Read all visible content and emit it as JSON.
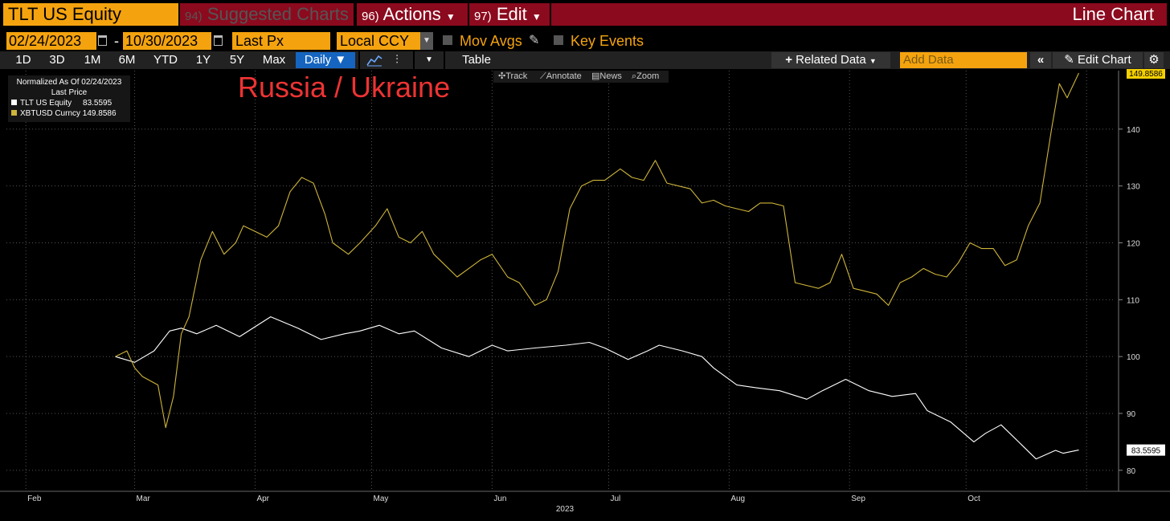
{
  "topbar": {
    "security": "TLT US Equity",
    "suggested_num": "94)",
    "suggested": "Suggested Charts",
    "actions_num": "96)",
    "actions": "Actions",
    "edit_num": "97)",
    "edit": "Edit",
    "chart_type": "Line Chart"
  },
  "datebar": {
    "start_date": "02/24/2023",
    "end_date": "10/30/2023",
    "dash": "-",
    "field": "Last Px",
    "currency": "Local CCY",
    "mov_avgs": "Mov Avgs",
    "key_events": "Key Events"
  },
  "toolbar": {
    "ranges": [
      "1D",
      "3D",
      "1M",
      "6M",
      "YTD",
      "1Y",
      "5Y",
      "Max"
    ],
    "frequency": "Daily",
    "table": "Table",
    "related_data": "Related Data",
    "add_data_placeholder": "Add Data",
    "edit_chart": "Edit Chart"
  },
  "mini_toolbar": {
    "track": "Track",
    "annotate": "Annotate",
    "news": "News",
    "zoom": "Zoom"
  },
  "legend": {
    "title": "Normalized As Of 02/24/2023",
    "subtitle": "Last Price",
    "s1_name": "TLT US Equity",
    "s1_value": "83.5595",
    "s2_name": "XBTUSD Curncy",
    "s2_value": "149.8586"
  },
  "annotation": "Russia / Ukraine",
  "colors": {
    "accent": "#f4a30f",
    "header_red": "#8c0a1e",
    "series_tlt": "#ffffff",
    "series_btc": "#cfb53b",
    "annotation": "#e33333",
    "highlight_blue": "#1565c0"
  },
  "chart_data": {
    "type": "line",
    "title": "",
    "xlabel": "2023",
    "ylabel": "",
    "ylim": [
      78,
      150
    ],
    "x_months": [
      "Feb",
      "Mar",
      "Apr",
      "May",
      "Jun",
      "Jul",
      "Aug",
      "Sep",
      "Oct"
    ],
    "y_ticks": [
      80,
      90,
      100,
      110,
      120,
      130,
      140
    ],
    "grid": true,
    "legend_position": "top-left",
    "series": [
      {
        "name": "TLT US Equity",
        "color": "#ffffff",
        "last_label": "83.5595",
        "values": [
          [
            "2023-02-24",
            100
          ],
          [
            "2023-03-01",
            99
          ],
          [
            "2023-03-06",
            101
          ],
          [
            "2023-03-10",
            104.5
          ],
          [
            "2023-03-13",
            105
          ],
          [
            "2023-03-17",
            104
          ],
          [
            "2023-03-22",
            105.5
          ],
          [
            "2023-03-28",
            103.5
          ],
          [
            "2023-04-05",
            107
          ],
          [
            "2023-04-12",
            105
          ],
          [
            "2023-04-18",
            103
          ],
          [
            "2023-04-24",
            104
          ],
          [
            "2023-04-28",
            104.5
          ],
          [
            "2023-05-03",
            105.5
          ],
          [
            "2023-05-08",
            104
          ],
          [
            "2023-05-12",
            104.5
          ],
          [
            "2023-05-19",
            101.5
          ],
          [
            "2023-05-26",
            100
          ],
          [
            "2023-06-01",
            102
          ],
          [
            "2023-06-05",
            101
          ],
          [
            "2023-06-12",
            101.5
          ],
          [
            "2023-06-20",
            102
          ],
          [
            "2023-06-26",
            102.5
          ],
          [
            "2023-06-30",
            101.5
          ],
          [
            "2023-07-06",
            99.5
          ],
          [
            "2023-07-11",
            101
          ],
          [
            "2023-07-14",
            102
          ],
          [
            "2023-07-20",
            101
          ],
          [
            "2023-07-25",
            100
          ],
          [
            "2023-07-28",
            98
          ],
          [
            "2023-08-03",
            95
          ],
          [
            "2023-08-08",
            94.5
          ],
          [
            "2023-08-14",
            94
          ],
          [
            "2023-08-21",
            92.5
          ],
          [
            "2023-08-25",
            94
          ],
          [
            "2023-08-31",
            96
          ],
          [
            "2023-09-06",
            94
          ],
          [
            "2023-09-12",
            93
          ],
          [
            "2023-09-18",
            93.5
          ],
          [
            "2023-09-21",
            90.5
          ],
          [
            "2023-09-27",
            88.5
          ],
          [
            "2023-10-03",
            85
          ],
          [
            "2023-10-06",
            86.5
          ],
          [
            "2023-10-10",
            88
          ],
          [
            "2023-10-13",
            86
          ],
          [
            "2023-10-19",
            82
          ],
          [
            "2023-10-24",
            83.5
          ],
          [
            "2023-10-26",
            83
          ],
          [
            "2023-10-30",
            83.5595
          ]
        ]
      },
      {
        "name": "XBTUSD Curncy",
        "color": "#cfb53b",
        "last_label": "149.8586",
        "values": [
          [
            "2023-02-24",
            100
          ],
          [
            "2023-02-27",
            101
          ],
          [
            "2023-03-01",
            98
          ],
          [
            "2023-03-03",
            96.5
          ],
          [
            "2023-03-07",
            95
          ],
          [
            "2023-03-09",
            87.5
          ],
          [
            "2023-03-11",
            93
          ],
          [
            "2023-03-13",
            104
          ],
          [
            "2023-03-15",
            107
          ],
          [
            "2023-03-18",
            117
          ],
          [
            "2023-03-21",
            122
          ],
          [
            "2023-03-24",
            118
          ],
          [
            "2023-03-27",
            120
          ],
          [
            "2023-03-29",
            123
          ],
          [
            "2023-04-01",
            122
          ],
          [
            "2023-04-04",
            121
          ],
          [
            "2023-04-07",
            123
          ],
          [
            "2023-04-10",
            129
          ],
          [
            "2023-04-13",
            131.5
          ],
          [
            "2023-04-16",
            130.5
          ],
          [
            "2023-04-19",
            125
          ],
          [
            "2023-04-21",
            120
          ],
          [
            "2023-04-25",
            118
          ],
          [
            "2023-04-28",
            120
          ],
          [
            "2023-05-02",
            123
          ],
          [
            "2023-05-05",
            126
          ],
          [
            "2023-05-08",
            121
          ],
          [
            "2023-05-11",
            120
          ],
          [
            "2023-05-14",
            122
          ],
          [
            "2023-05-17",
            118
          ],
          [
            "2023-05-20",
            116
          ],
          [
            "2023-05-23",
            114
          ],
          [
            "2023-05-26",
            115.5
          ],
          [
            "2023-05-29",
            117
          ],
          [
            "2023-06-01",
            118
          ],
          [
            "2023-06-05",
            114
          ],
          [
            "2023-06-08",
            113
          ],
          [
            "2023-06-12",
            109
          ],
          [
            "2023-06-15",
            110
          ],
          [
            "2023-06-18",
            115
          ],
          [
            "2023-06-21",
            126
          ],
          [
            "2023-06-24",
            130
          ],
          [
            "2023-06-27",
            131
          ],
          [
            "2023-06-30",
            131
          ],
          [
            "2023-07-04",
            133
          ],
          [
            "2023-07-07",
            131.5
          ],
          [
            "2023-07-10",
            131
          ],
          [
            "2023-07-13",
            134.5
          ],
          [
            "2023-07-16",
            130.5
          ],
          [
            "2023-07-19",
            130
          ],
          [
            "2023-07-22",
            129.5
          ],
          [
            "2023-07-25",
            127
          ],
          [
            "2023-07-28",
            127.5
          ],
          [
            "2023-07-31",
            126.5
          ],
          [
            "2023-08-03",
            126
          ],
          [
            "2023-08-06",
            125.5
          ],
          [
            "2023-08-09",
            127
          ],
          [
            "2023-08-12",
            127
          ],
          [
            "2023-08-15",
            126.5
          ],
          [
            "2023-08-18",
            113
          ],
          [
            "2023-08-21",
            112.5
          ],
          [
            "2023-08-24",
            112
          ],
          [
            "2023-08-27",
            113
          ],
          [
            "2023-08-30",
            118
          ],
          [
            "2023-09-02",
            112
          ],
          [
            "2023-09-05",
            111.5
          ],
          [
            "2023-09-08",
            111
          ],
          [
            "2023-09-11",
            109
          ],
          [
            "2023-09-14",
            113
          ],
          [
            "2023-09-17",
            114
          ],
          [
            "2023-09-20",
            115.5
          ],
          [
            "2023-09-23",
            114.5
          ],
          [
            "2023-09-26",
            114
          ],
          [
            "2023-09-29",
            116.5
          ],
          [
            "2023-10-02",
            120
          ],
          [
            "2023-10-05",
            119
          ],
          [
            "2023-10-08",
            119
          ],
          [
            "2023-10-11",
            116
          ],
          [
            "2023-10-14",
            117
          ],
          [
            "2023-10-17",
            123
          ],
          [
            "2023-10-20",
            127
          ],
          [
            "2023-10-23",
            140
          ],
          [
            "2023-10-25",
            148
          ],
          [
            "2023-10-27",
            145.5
          ],
          [
            "2023-10-30",
            149.8586
          ]
        ]
      }
    ]
  }
}
